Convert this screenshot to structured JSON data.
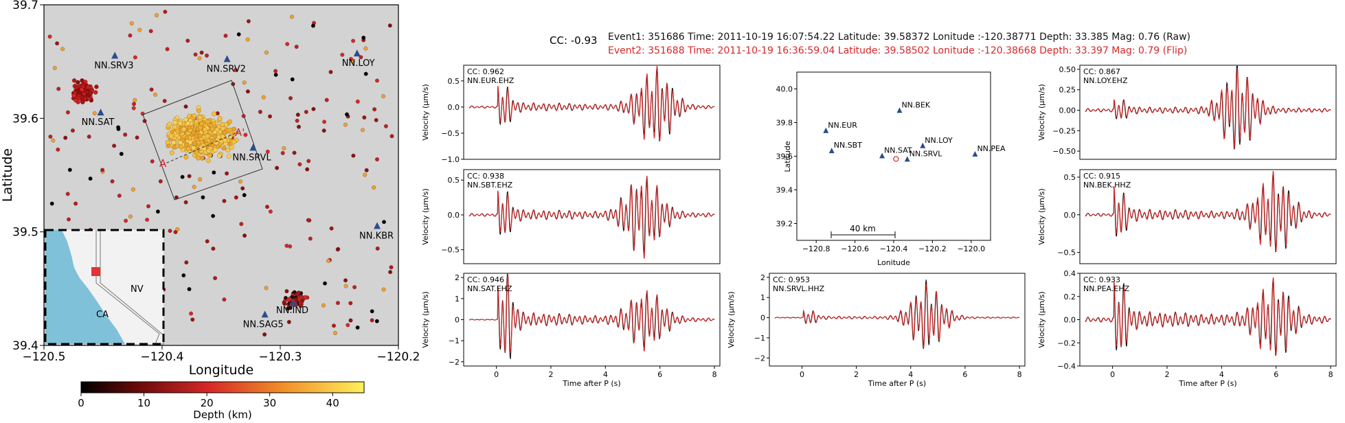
{
  "header": {
    "cc": "CC: -0.93",
    "event1": "Event1: 351686 Time: 2011-10-19 16:07:54.22 Latitude: 39.58372  Lonitude :-120.38771  Depth: 33.385  Mag: 0.76 (Raw)",
    "event2": "Event2: 351688 Time: 2011-10-19 16:36:59.04 Latitude: 39.58502  Lonitude :-120.38668  Depth: 33.397  Mag: 0.79 (Flip)"
  },
  "colors": {
    "raw": "#111111",
    "flip": "#d62728",
    "station": "#2a4d8f",
    "map_bg": "#d3d3d3",
    "water": "#7fc1d8"
  },
  "chart_data": [
    {
      "type": "scatter",
      "xlabel": "Longitude",
      "ylabel": "Latitude",
      "xlim": [
        -120.5,
        -120.2
      ],
      "ylim": [
        39.4,
        39.7
      ],
      "xticks": [
        "−120.5",
        "−120.4",
        "−120.3",
        "−120.2"
      ],
      "yticks": [
        "39.4",
        "39.5",
        "39.6",
        "39.7"
      ],
      "stations": [
        {
          "name": "NN.SRV3",
          "lon": -120.44,
          "lat": 39.655
        },
        {
          "name": "NN.SRV2",
          "lon": -120.345,
          "lat": 39.652
        },
        {
          "name": "NN.LOY",
          "lon": -120.235,
          "lat": 39.657
        },
        {
          "name": "NN.SAT",
          "lon": -120.452,
          "lat": 39.605
        },
        {
          "name": "NN.SRVL",
          "lon": -120.323,
          "lat": 39.574
        },
        {
          "name": "NN.KBR",
          "lon": -120.218,
          "lat": 39.505
        },
        {
          "name": "NN.IND",
          "lon": -120.289,
          "lat": 39.437
        },
        {
          "name": "NN.SAG5",
          "lon": -120.313,
          "lat": 39.427
        }
      ],
      "profile_labels": [
        "A",
        "A'"
      ],
      "inset_labels": [
        "NV",
        "CA"
      ],
      "colorbar": {
        "label": "Depth (km)",
        "ticks": [
          "0",
          "10",
          "20",
          "30",
          "40"
        ],
        "range": [
          0,
          45
        ]
      }
    },
    {
      "type": "scatter",
      "xlabel": "Lonitude",
      "ylabel": "Latitude",
      "xlim": [
        -120.9,
        -119.9
      ],
      "ylim": [
        39.1,
        40.1
      ],
      "xticks": [
        "−120.8",
        "−120.6",
        "−120.4",
        "−120.2",
        "−120.0"
      ],
      "yticks": [
        "39.2",
        "39.4",
        "39.6",
        "39.8",
        "40.0"
      ],
      "scale_bar": "40 km",
      "stations": [
        {
          "name": "NN.BEK",
          "lon": -120.37,
          "lat": 39.87
        },
        {
          "name": "NN.EUR",
          "lon": -120.75,
          "lat": 39.75
        },
        {
          "name": "NN.SBT",
          "lon": -120.72,
          "lat": 39.63
        },
        {
          "name": "NN.SAT",
          "lon": -120.46,
          "lat": 39.6
        },
        {
          "name": "NN.LOY",
          "lon": -120.25,
          "lat": 39.66
        },
        {
          "name": "NN.SRVL",
          "lon": -120.33,
          "lat": 39.58
        },
        {
          "name": "NN.PEA",
          "lon": -119.98,
          "lat": 39.61
        }
      ],
      "event": {
        "lon": -120.388,
        "lat": 39.584
      }
    },
    {
      "type": "line",
      "station": "NN.EUR.EHZ",
      "cc": "CC: 0.962",
      "xlabel": "",
      "ylabel": "Velocity (μm/s)",
      "xlim": [
        -1.2,
        8.2
      ],
      "ylim": [
        -1.0,
        0.8
      ],
      "yticks": [
        -1.0,
        -0.5,
        0.0,
        0.5
      ],
      "ytick_labels": [
        "−1.0",
        "−0.5",
        "0.0",
        "0.5"
      ],
      "xticks": [],
      "onset": 0.05,
      "peaks": [
        [
          0.2,
          0.35
        ],
        [
          5.8,
          0.7
        ]
      ]
    },
    {
      "type": "line",
      "station": "NN.SBT.EHZ",
      "cc": "CC: 0.938",
      "xlabel": "",
      "ylabel": "Velocity (μm/s)",
      "xlim": [
        -1.2,
        8.2
      ],
      "ylim": [
        -0.7,
        0.65
      ],
      "yticks": [
        -0.5,
        0.0,
        0.5
      ],
      "ytick_labels": [
        "−0.5",
        "0.0",
        "0.5"
      ],
      "xticks": [],
      "onset": 0.05,
      "peaks": [
        [
          0.2,
          0.3
        ],
        [
          5.4,
          0.55
        ]
      ]
    },
    {
      "type": "line",
      "station": "NN.SAT.EHZ",
      "cc": "CC: 0.946",
      "xlabel": "Time after P (s)",
      "ylabel": "Velocity (μm/s)",
      "xlim": [
        -1.2,
        8.2
      ],
      "ylim": [
        -2.2,
        2.2
      ],
      "yticks": [
        -2,
        -1,
        0,
        1,
        2
      ],
      "ytick_labels": [
        "−2",
        "−1",
        "0",
        "1",
        "2"
      ],
      "xticks": [
        0,
        2,
        4,
        6,
        8
      ],
      "xtick_labels": [
        "0",
        "2",
        "4",
        "6",
        "8"
      ],
      "onset": 0.05,
      "peaks": [
        [
          0.3,
          1.8
        ],
        [
          5.5,
          1.3
        ]
      ]
    },
    {
      "type": "line",
      "station": "NN.SRVL.HHZ",
      "cc": "CC: 0.953",
      "xlabel": "Time after P (s)",
      "ylabel": "Velocity (μm/s)",
      "xlim": [
        -1.2,
        8.2
      ],
      "ylim": [
        -2.4,
        2.2
      ],
      "yticks": [
        -2,
        -1,
        0,
        1,
        2
      ],
      "ytick_labels": [
        "−2",
        "−1",
        "0",
        "1",
        "2"
      ],
      "xticks": [
        0,
        2,
        4,
        6,
        8
      ],
      "xtick_labels": [
        "0",
        "2",
        "4",
        "6",
        "8"
      ],
      "onset": 0.05,
      "peaks": [
        [
          0.2,
          0.3
        ],
        [
          4.6,
          1.5
        ]
      ]
    },
    {
      "type": "line",
      "station": "NN.LOY.EHZ",
      "cc": "CC: 0.867",
      "xlabel": "",
      "ylabel": "Velocity (μm/s)",
      "xlim": [
        -1.2,
        8.2
      ],
      "ylim": [
        -0.6,
        0.55
      ],
      "yticks": [
        -0.5,
        -0.25,
        0.0,
        0.25,
        0.5
      ],
      "ytick_labels": [
        "−0.50",
        "−0.25",
        "0.00",
        "0.25",
        "0.50"
      ],
      "xticks": [],
      "onset": 0.05,
      "peaks": [
        [
          0.2,
          0.1
        ],
        [
          4.6,
          0.45
        ]
      ]
    },
    {
      "type": "line",
      "station": "NN.BEK.HHZ",
      "cc": "CC: 0.915",
      "xlabel": "",
      "ylabel": "Velocity (μm/s)",
      "xlim": [
        -1.2,
        8.2
      ],
      "ylim": [
        -0.65,
        0.6
      ],
      "yticks": [
        -0.5,
        0.0,
        0.5
      ],
      "ytick_labels": [
        "−0.5",
        "0.0",
        "0.5"
      ],
      "xticks": [],
      "onset": 0.05,
      "peaks": [
        [
          0.15,
          0.3
        ],
        [
          5.9,
          0.5
        ]
      ]
    },
    {
      "type": "line",
      "station": "NN.PEA.EHZ",
      "cc": "CC: 0.933",
      "xlabel": "Time after P (s)",
      "ylabel": "Velocity (μm/s)",
      "xlim": [
        -1.2,
        8.2
      ],
      "ylim": [
        -0.4,
        0.4
      ],
      "yticks": [
        -0.4,
        -0.2,
        0.0,
        0.2,
        0.4
      ],
      "ytick_labels": [
        "−0.4",
        "−0.2",
        "0.0",
        "0.2",
        "0.4"
      ],
      "xticks": [
        0,
        2,
        4,
        6,
        8
      ],
      "xtick_labels": [
        "0",
        "2",
        "4",
        "6",
        "8"
      ],
      "onset": 0.05,
      "peaks": [
        [
          0.2,
          0.28
        ],
        [
          5.9,
          0.3
        ]
      ]
    }
  ]
}
